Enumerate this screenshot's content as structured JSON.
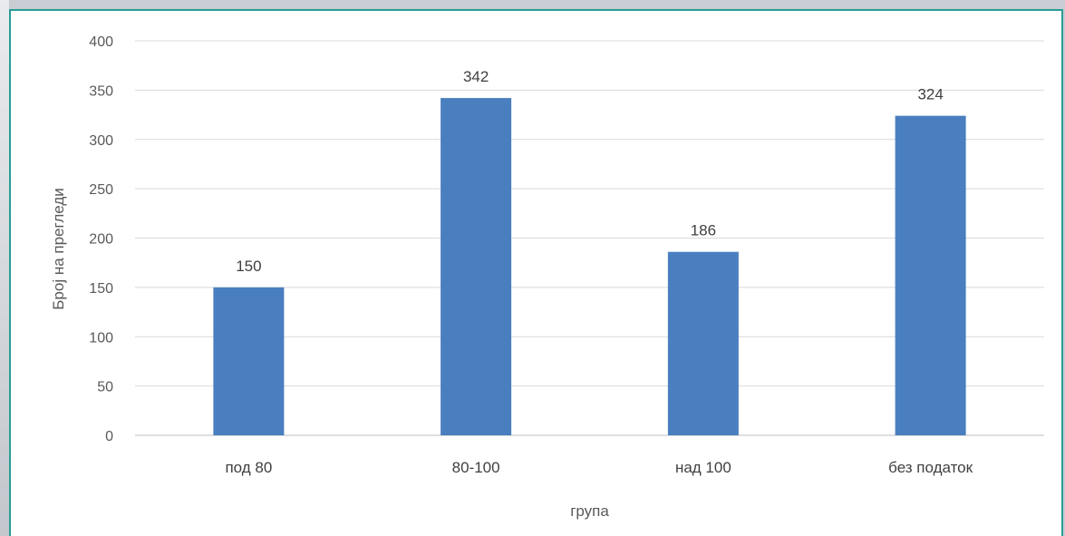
{
  "chart_data": {
    "type": "bar",
    "categories": [
      "под 80",
      "80-100",
      "над 100",
      "без податок"
    ],
    "values": [
      150,
      342,
      186,
      324
    ],
    "data_labels": [
      "150",
      "342",
      "186",
      "324"
    ],
    "title": "",
    "xlabel": "група",
    "ylabel": "Број на прегледи",
    "ylim": [
      0,
      400
    ],
    "yticks": [
      0,
      50,
      100,
      150,
      200,
      250,
      300,
      350,
      400
    ],
    "ytick_labels": [
      "0",
      "50",
      "100",
      "150",
      "200",
      "250",
      "300",
      "350",
      "400"
    ],
    "grid": true,
    "legend": "none",
    "colors": {
      "bar": "#4a7fbf",
      "grid": "#d9d9d9",
      "frame_border": "#2a9c96"
    }
  }
}
